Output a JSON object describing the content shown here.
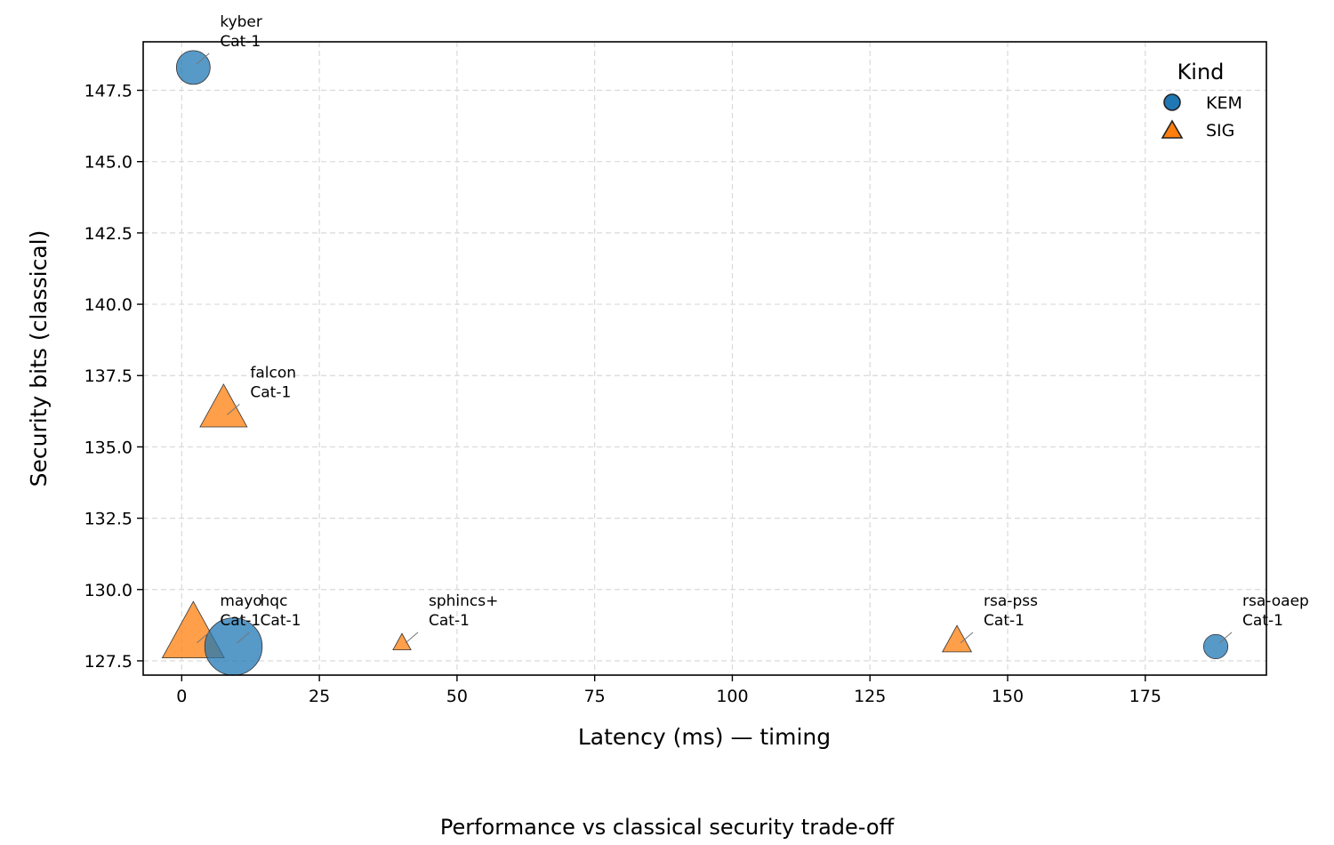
{
  "chart_data": {
    "type": "scatter",
    "caption": "Performance vs classical security trade-off",
    "xlabel": "Latency (ms) — timing",
    "ylabel": "Security bits (classical)",
    "xlim": [
      -7,
      197
    ],
    "ylim": [
      127.0,
      149.2
    ],
    "x_ticks": [
      0,
      25,
      50,
      75,
      100,
      125,
      150,
      175
    ],
    "y_ticks": [
      127.5,
      130.0,
      132.5,
      135.0,
      137.5,
      140.0,
      142.5,
      145.0,
      147.5
    ],
    "grid": true,
    "legend": {
      "title": "Kind",
      "placement": "top-right",
      "entries": [
        {
          "label": "KEM",
          "marker": "circle",
          "color": "#1f77b4"
        },
        {
          "label": "SIG",
          "marker": "triangle",
          "color": "#ff7f0e"
        }
      ]
    },
    "points": [
      {
        "label": "kyber",
        "category": "Cat-1",
        "kind": "KEM",
        "x": 2.1,
        "y": 148.3,
        "size": 1.0
      },
      {
        "label": "falcon",
        "category": "Cat-1",
        "kind": "SIG",
        "x": 7.6,
        "y": 136.0,
        "size": 1.1
      },
      {
        "label": "mayo",
        "category": "Cat-1",
        "kind": "SIG",
        "x": 2.1,
        "y": 128.0,
        "size": 1.45
      },
      {
        "label": "hqc",
        "category": "Cat-1",
        "kind": "KEM",
        "x": 9.4,
        "y": 128.0,
        "size": 1.7
      },
      {
        "label": "sphincs+",
        "category": "Cat-1",
        "kind": "SIG",
        "x": 40.0,
        "y": 128.0,
        "size": 0.42
      },
      {
        "label": "rsa-pss",
        "category": "Cat-1",
        "kind": "SIG",
        "x": 140.8,
        "y": 128.0,
        "size": 0.68
      },
      {
        "label": "rsa-oaep",
        "category": "Cat-1",
        "kind": "KEM",
        "x": 187.8,
        "y": 128.0,
        "size": 0.72
      }
    ]
  }
}
